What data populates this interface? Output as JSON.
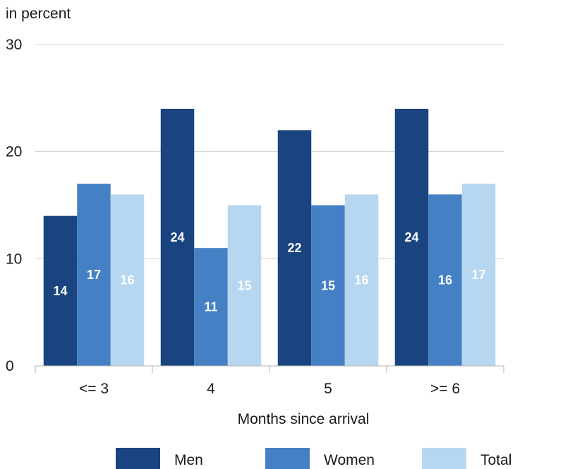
{
  "chart_data": {
    "type": "bar",
    "y_unit_label": "in percent",
    "xlabel": "Months since arrival",
    "categories": [
      "<= 3",
      "4",
      "5",
      ">= 6"
    ],
    "series": [
      {
        "name": "Men",
        "color": "#1a4480",
        "values": [
          14,
          24,
          22,
          24
        ]
      },
      {
        "name": "Women",
        "color": "#4580c4",
        "values": [
          17,
          11,
          15,
          16
        ]
      },
      {
        "name": "Total",
        "color": "#b7d7f0",
        "values": [
          16,
          15,
          16,
          17
        ]
      }
    ],
    "ylim": [
      0,
      30
    ],
    "yticks": [
      0,
      10,
      20,
      30
    ],
    "grid": true,
    "legend_position": "bottom",
    "data_labels": true
  }
}
